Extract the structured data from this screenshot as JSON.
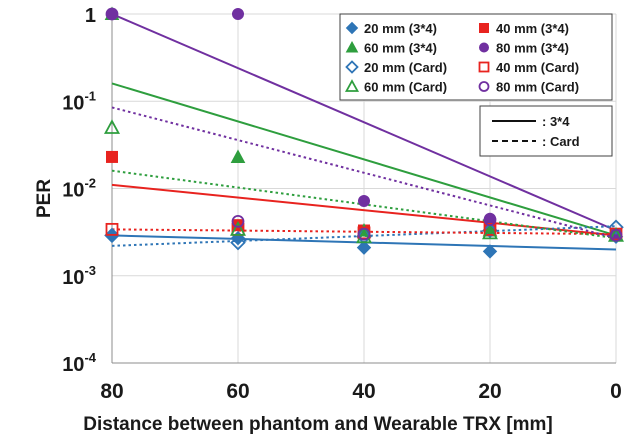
{
  "chart_data": {
    "type": "scatter",
    "xlabel": "Distance between phantom and Wearable TRX [mm]",
    "ylabel": "PER",
    "x_reversed": true,
    "xlim": [
      80,
      0
    ],
    "ylim": [
      0.0001,
      1
    ],
    "y_scale": "log",
    "grid": true,
    "x_ticks": [
      "80",
      "60",
      "40",
      "20",
      "0"
    ],
    "x_tick_values": [
      80,
      60,
      40,
      20,
      0
    ],
    "y_ticks": [
      {
        "value": 1,
        "base": "1",
        "exp": ""
      },
      {
        "value": 0.1,
        "base": "10",
        "exp": "-1"
      },
      {
        "value": 0.01,
        "base": "10",
        "exp": "-2"
      },
      {
        "value": 0.001,
        "base": "10",
        "exp": "-3"
      },
      {
        "value": 0.0001,
        "base": "10",
        "exp": "-4"
      }
    ],
    "legend_position": "top-right",
    "series": [
      {
        "name": "20 mm (3*4)",
        "color": "#2e75b6",
        "marker": "diamond",
        "filled": true,
        "line": "solid",
        "x": [
          80,
          60,
          40,
          20,
          0
        ],
        "y": [
          0.0029,
          0.0027,
          0.0021,
          0.0019,
          0.0028
        ],
        "fit": [
          0.0029,
          0.002
        ]
      },
      {
        "name": "40 mm (3*4)",
        "color": "#e8231f",
        "marker": "square",
        "filled": true,
        "line": "solid",
        "x": [
          80,
          60,
          40,
          20,
          0
        ],
        "y": [
          0.023,
          0.0038,
          0.0033,
          0.0036,
          0.0029
        ],
        "fit": [
          0.011,
          0.0029
        ]
      },
      {
        "name": "60 mm (3*4)",
        "color": "#2e9e3e",
        "marker": "triangle",
        "filled": true,
        "line": "solid",
        "x": [
          80,
          60,
          40,
          20,
          0
        ],
        "y": [
          1.0,
          0.023,
          0.0033,
          0.0033,
          0.0029
        ],
        "fit": [
          0.16,
          0.0029
        ]
      },
      {
        "name": "80 mm (3*4)",
        "color": "#7030a0",
        "marker": "circle",
        "filled": true,
        "line": "solid",
        "x": [
          80,
          60,
          40,
          20,
          0
        ],
        "y": [
          1.0,
          1.0,
          0.0072,
          0.0045,
          0.0029
        ],
        "fit": [
          1.0,
          0.0033
        ]
      },
      {
        "name": "20 mm (Card)",
        "color": "#2e75b6",
        "marker": "diamond",
        "filled": false,
        "line": "dotted",
        "x": [
          80,
          60,
          40,
          20,
          0
        ],
        "y": [
          0.0029,
          0.0024,
          0.0028,
          0.0033,
          0.0036
        ],
        "fit": [
          0.0022,
          0.0037
        ]
      },
      {
        "name": "40 mm (Card)",
        "color": "#e8231f",
        "marker": "square",
        "filled": false,
        "line": "dotted",
        "x": [
          80,
          60,
          40,
          20,
          0
        ],
        "y": [
          0.0034,
          0.0034,
          0.0031,
          0.0034,
          0.003
        ],
        "fit": [
          0.0034,
          0.003
        ]
      },
      {
        "name": "60 mm (Card)",
        "color": "#2e9e3e",
        "marker": "triangle",
        "filled": false,
        "line": "dotted",
        "x": [
          80,
          60,
          40,
          20,
          0
        ],
        "y": [
          0.05,
          0.0034,
          0.0028,
          0.0031,
          0.0029
        ],
        "fit": [
          0.016,
          0.0027
        ]
      },
      {
        "name": "80 mm (Card)",
        "color": "#7030a0",
        "marker": "circle",
        "filled": false,
        "line": "dotted",
        "x": [
          80,
          60,
          40,
          20,
          0
        ],
        "y": [
          1.0,
          0.0042,
          0.003,
          0.0044,
          0.0029
        ],
        "fit": [
          0.085,
          0.0027
        ]
      }
    ],
    "line_legend": [
      {
        "label": ": 3*4",
        "style": "solid"
      },
      {
        "label": ": Card",
        "style": "dashed"
      }
    ]
  }
}
